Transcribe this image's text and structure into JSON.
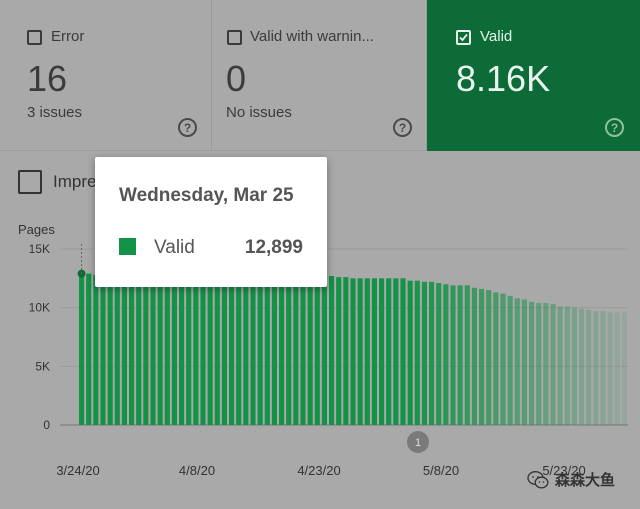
{
  "cards": [
    {
      "label": "Error",
      "value": "16",
      "sub": "3 issues",
      "checked": false
    },
    {
      "label": "Valid with warnin...",
      "value": "0",
      "sub": "No issues",
      "checked": false
    },
    {
      "label": "Valid",
      "value": "8.16K",
      "sub": "",
      "checked": true
    }
  ],
  "impressions": {
    "label": "Impressions"
  },
  "tooltip": {
    "date": "Wednesday, Mar 25",
    "series": "Valid",
    "value": "12,899"
  },
  "marker": {
    "label": "1"
  },
  "watermark": {
    "text": "森森大鱼"
  },
  "colors": {
    "valid": "#149247",
    "valid_card": "#0d6b37",
    "background": "#a9a9a9"
  },
  "chart_data": {
    "type": "bar",
    "ylabel": "Pages",
    "y_ticks": [
      0,
      5000,
      10000,
      15000
    ],
    "y_tick_labels": [
      "0",
      "5K",
      "10K",
      "15K"
    ],
    "ylim": [
      0,
      15000
    ],
    "x_tick_labels": [
      "3/24/20",
      "4/8/20",
      "4/23/20",
      "5/8/20",
      "5/23/20"
    ],
    "series": [
      {
        "name": "Valid",
        "values": [
          12899,
          12900,
          12800,
          12800,
          12800,
          12800,
          12800,
          12800,
          12800,
          12800,
          12800,
          12800,
          12800,
          12800,
          12800,
          12800,
          12800,
          12800,
          12800,
          12800,
          12800,
          12800,
          12800,
          12800,
          12800,
          12800,
          12800,
          12800,
          12800,
          12800,
          12800,
          12800,
          12800,
          12900,
          12700,
          12700,
          12600,
          12600,
          12500,
          12500,
          12500,
          12500,
          12500,
          12500,
          12500,
          12500,
          12300,
          12300,
          12200,
          12200,
          12100,
          12000,
          11900,
          11900,
          11900,
          11700,
          11600,
          11500,
          11300,
          11200,
          11000,
          10800,
          10700,
          10500,
          10400,
          10400,
          10300,
          10100,
          10100,
          10000,
          9900,
          9800,
          9700,
          9700,
          9600,
          9600,
          9600
        ]
      }
    ],
    "grid": true
  }
}
